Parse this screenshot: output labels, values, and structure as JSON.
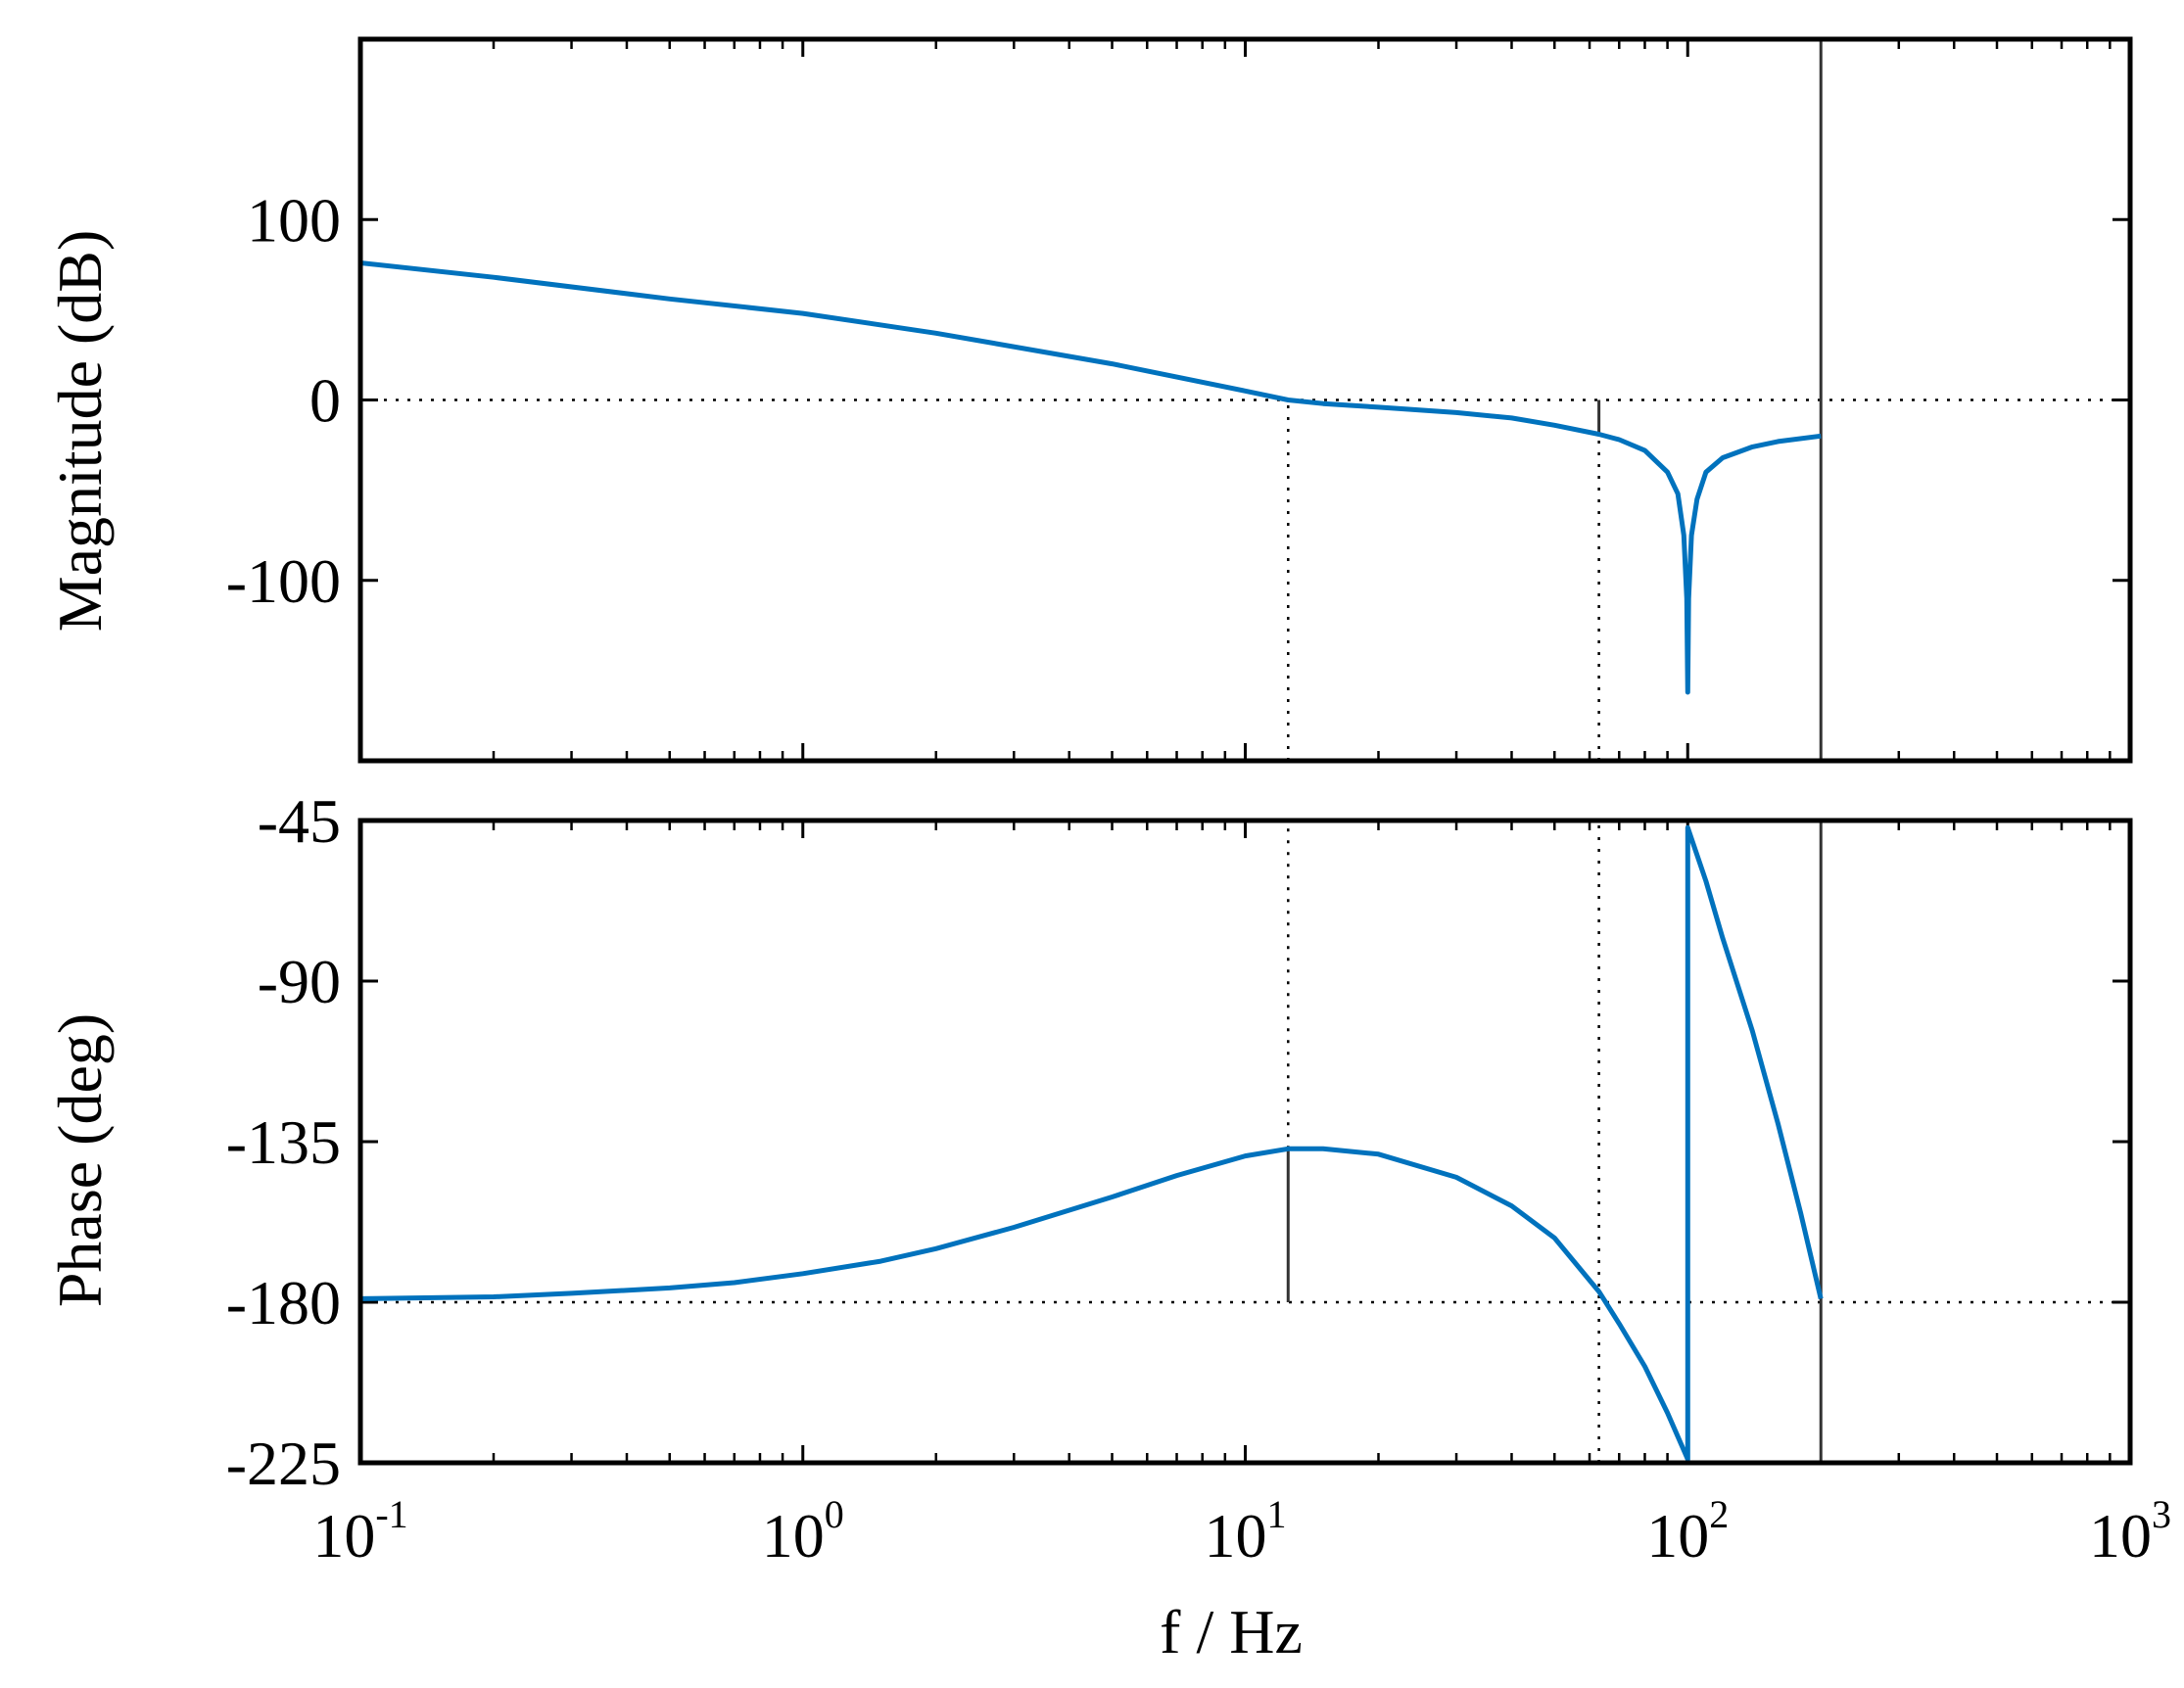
{
  "chart_data": [
    {
      "type": "line",
      "panel": "magnitude",
      "ylabel": "Magnitude (dB)",
      "xscale": "log",
      "xlim": [
        0.1,
        1000
      ],
      "ylim": [
        -200,
        200
      ],
      "yticks": [
        100,
        0,
        -100
      ],
      "ytick_labels": [
        "100",
        "0",
        "-100"
      ],
      "grid": false,
      "series": [
        {
          "color": "#0072BD",
          "x": [
            0.1,
            0.2,
            0.5,
            1,
            2,
            5,
            10,
            12.5,
            15,
            20,
            30,
            40,
            50,
            63,
            70,
            80,
            90,
            95,
            98,
            99.5,
            100,
            100.5,
            102,
            105,
            110,
            120,
            140,
            160,
            200
          ],
          "y": [
            76,
            68,
            56,
            48,
            37,
            20,
            5,
            0,
            -2,
            -4,
            -7,
            -10,
            -14,
            -19,
            -22,
            -28,
            -40,
            -52,
            -75,
            -110,
            -162,
            -110,
            -75,
            -55,
            -40,
            -32,
            -26,
            -23,
            -20
          ]
        }
      ],
      "reference_lines": [
        {
          "orientation": "horizontal",
          "y": 0,
          "style": "dotted"
        },
        {
          "orientation": "vertical",
          "x": 12.5,
          "style": "dotted",
          "from": -200,
          "to": 0
        },
        {
          "orientation": "vertical",
          "x": 63,
          "style": "dotted",
          "from": -200,
          "to": -19
        },
        {
          "orientation": "vertical",
          "x": 63,
          "style": "solid",
          "from": -19,
          "to": 0
        },
        {
          "orientation": "vertical",
          "x": 200,
          "style": "solid",
          "from": -200,
          "to": 200
        }
      ]
    },
    {
      "type": "line",
      "panel": "phase",
      "ylabel": "Phase (deg)",
      "xlabel": "f / Hz",
      "xscale": "log",
      "xlim": [
        0.1,
        1000
      ],
      "ylim": [
        -225,
        -45
      ],
      "yticks": [
        -45,
        -90,
        -135,
        -180,
        -225
      ],
      "ytick_labels": [
        "-45",
        "-90",
        "-135",
        "-180",
        "-225"
      ],
      "xticks": [
        0.1,
        1,
        10,
        100,
        1000
      ],
      "xtick_labels": [
        {
          "base": "10",
          "exp": "-1"
        },
        {
          "base": "10",
          "exp": "0"
        },
        {
          "base": "10",
          "exp": "1"
        },
        {
          "base": "10",
          "exp": "2"
        },
        {
          "base": "10",
          "exp": "3"
        }
      ],
      "grid": false,
      "series": [
        {
          "color": "#0072BD",
          "x": [
            0.1,
            0.2,
            0.3,
            0.5,
            0.7,
            1,
            1.5,
            2,
            3,
            5,
            7,
            10,
            12.5,
            15,
            20,
            30,
            40,
            50,
            63,
            70,
            80,
            90,
            100,
            100,
            110,
            120,
            140,
            160,
            180,
            200
          ],
          "y": [
            -179,
            -178.5,
            -177.5,
            -176,
            -174.5,
            -172,
            -168.5,
            -165,
            -159,
            -150.5,
            -144.5,
            -139,
            -137,
            -137,
            -138.5,
            -145,
            -153,
            -162,
            -177,
            -186,
            -198,
            -211,
            -224,
            -47,
            -62,
            -78,
            -104,
            -130,
            -155,
            -179
          ]
        }
      ],
      "reference_lines": [
        {
          "orientation": "horizontal",
          "y": -180,
          "style": "dotted"
        },
        {
          "orientation": "vertical",
          "x": 12.5,
          "style": "dotted",
          "from": -137,
          "to": -45
        },
        {
          "orientation": "vertical",
          "x": 12.5,
          "style": "solid",
          "from": -180,
          "to": -137
        },
        {
          "orientation": "vertical",
          "x": 63,
          "style": "dotted",
          "from": -225,
          "to": -45
        },
        {
          "orientation": "vertical",
          "x": 200,
          "style": "solid",
          "from": -225,
          "to": -45
        }
      ]
    }
  ]
}
